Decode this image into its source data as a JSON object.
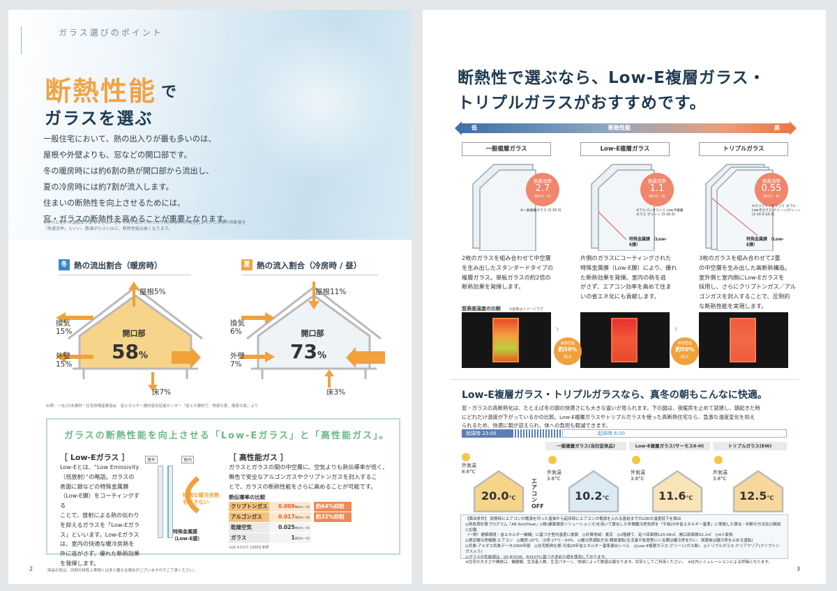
{
  "left": {
    "header": "ガラス選びのポイント",
    "title_main": "断熱性能",
    "title_de": "で",
    "title_sub": "ガラスを選ぶ",
    "intro_lines": [
      "一般住宅において、熱の出入りが最も多いのは、",
      "屋根や外壁よりも、窓などの開口部です。",
      "冬の暖房時には約6割の熱が開口部から流出し、",
      "夏の冷房時には約7割が流入します。",
      "住まいの断熱性を向上させるためには、",
      "窓・ガラスの断熱性を高めることが重要となります。"
    ],
    "intro_note": "※室内と屋外の温度差があるときに、室から熱が出たり入ったり(熱の流れ)が発生します。この熱の移動量を「熱還流率」といい、数値が小さいほど、断熱性能は高くなります。",
    "winter": {
      "badge": "冬",
      "title": "熱の流出割合（暖房時）",
      "roof": "屋根5%",
      "vent_label": "換気",
      "vent_val": "15%",
      "wall_label": "外壁",
      "wall_val": "15%",
      "floor": "床7%",
      "open_label": "開口部",
      "open_num": "58",
      "open_unit": "%"
    },
    "summer": {
      "badge": "夏",
      "title": "熱の流入割合（冷房時 / 昼）",
      "roof": "屋根11%",
      "vent_label": "換気",
      "vent_val": "6%",
      "wall_label": "外壁",
      "wall_val": "7%",
      "floor": "床3%",
      "open_label": "開口部",
      "open_num": "73",
      "open_unit": "%"
    },
    "source": "出典：一社)日本建材・住宅設備産業協会　省エネルギー建材普及促進センター「省エネ建材で、快適な家、健康な家」より",
    "lowe_title": "ガラスの断熱性能を向上させる「Low-Eガラス」と「高性能ガス」。",
    "lowe": {
      "heading": "［ Low-Eガラス ］",
      "lines": [
        "Low-Eとは、“Low Emissivity",
        "（低放射）”の略語。ガラスの",
        "表面に銀などの特殊金属膜",
        "（Low-E膜）をコーティングする",
        "ことで、放射による熱の伝わり",
        "を抑えるガラスを「Low-Eガラ",
        "ス」といいます。Low-Eガラス",
        "は、室内の快適な暖冷房熱を",
        "外に逃がさず、優れた断熱効果",
        "を発揮します。"
      ],
      "outdoor": "室外",
      "indoor": "室内",
      "arrow_text": "快適な暖冷房熱を逃さない",
      "film_label": "特殊金属膜",
      "film_sub": "（Low-E膜）"
    },
    "gas": {
      "heading": "［ 高性能ガス ］",
      "lines": [
        "ガラスとガラスの間の中空層に、空気よりも熱伝導率が低く、",
        "無色で安全なアルゴンガスやクリプトンガスを封入するこ",
        "とで、ガラスの断熱性能をさらに高めることが可能です。"
      ],
      "table_title": "熱伝導率の比較",
      "rows": [
        {
          "name": "クリプトンガス",
          "value": "0.009",
          "unit": "W/(m・K)",
          "note": "約64%抑制"
        },
        {
          "name": "アルゴンガス",
          "value": "0.017",
          "unit": "W/(m・K)",
          "note": "約32%抑制"
        },
        {
          "name": "乾燥空気",
          "value": "0.025",
          "unit": "W/(m・K)",
          "note": ""
        },
        {
          "name": "ガラス",
          "value": "1",
          "unit": "W/(m・K)",
          "note": ""
        }
      ],
      "table_note": "※JIS R3107:1998を参照"
    },
    "page_num": "2",
    "footer": "商品の色は、印刷の特性上実物とは多少異なる場合がございますのでご了承ください。"
  },
  "right": {
    "title_l1": "断熱性で選ぶなら、Low-E複層ガラス・",
    "title_l2": "トリプルガラスがおすすめです。",
    "scale_low": "低",
    "scale_mid": "断熱性能",
    "scale_high": "高",
    "glasses": [
      {
        "name": "一般複層ガラス",
        "heat_label": "熱貫流率",
        "heat_val": "2.7",
        "heat_unit": "W/(㎡・K)",
        "spec": "※一般複層ガラス (3-16-3)",
        "film": "",
        "desc": [
          "2枚のガラスを組み合わせて中空層",
          "を生み出したスタンダードタイプの",
          "複層ガラス。単板ガラスの約2倍の",
          "断熱効果を発揮します。"
        ]
      },
      {
        "name": "Low-E複層ガラス",
        "heat_label": "熱貫流率",
        "heat_val": "1.1",
        "heat_unit": "W/(㎡・K)",
        "spec": "※アルゴンガス入り Low-E複層ガラス グリーン (3-16-3)",
        "film": "特殊金属膜 （Low-E膜）",
        "desc": [
          "片側のガラスにコーティングされた",
          "特殊金属膜（Low-E膜）により、優れ",
          "た断熱効果を発揮。室内の熱を逃",
          "がさず、エアコン効率を高めて住ま",
          "いの省エネ化にも貢献します。"
        ]
      },
      {
        "name": "トリプルガラス",
        "heat_label": "熱貫流率",
        "heat_val": "0.55",
        "heat_unit": "W/(㎡・K)",
        "spec": "※クリプトンガス入り ダブルLow-Eガラス グリーン/グリーン (3-10-3-10-3)",
        "film": "特殊金属膜 （Low-E膜）",
        "desc": [
          "3枚のガラスを組み合わせて2重",
          "の中空層を生み出した高断熱構造。",
          "室外側と室内側にLow-Eガラスを",
          "採用し、さらにクリプトンガス／アル",
          "ゴンガスを封入することで、圧倒的",
          "な断熱性能を実現します。"
        ]
      }
    ],
    "thermal_title": "窓表面温度の比較",
    "thermal_note": "※画像はイメージです",
    "improve1_top": "断熱性能",
    "improve1_val": "約59%",
    "improve1_bot": "向上",
    "improve2_top": "断熱性能",
    "improve2_val": "約50%",
    "improve2_bot": "向上",
    "comfort_title": "Low-E複層ガラス・トリプルガラスなら、真冬の朝もこんなに快適。",
    "comfort_lines": [
      "窓・ガラスの高断熱化は、たとえば冬の朝の快適さにも大きな違いが見られます。下の図は、夜暖房を止めて就寝し、朝起きた時",
      "にどれだけ温度が下がっているかの比較。Low-E複層ガラスやトリプルガラスを使った高断熱住宅なら、急激な温度変化を抑え",
      "られるため、快適に朝が迎えられ、体への負担も軽減できます。"
    ],
    "sleep_label": "就寝時 23:00",
    "wake_label": "起床時 6:00",
    "outside_label": "外気温",
    "outside_left": "8.6°C",
    "aircon_off": "エアコンOFF",
    "houses": [
      {
        "name": "",
        "outside": "",
        "temp": "20.0",
        "unit": "℃"
      },
      {
        "name": "一般複層ガラス(当社従来品)",
        "outside": "3.8°C",
        "temp": "10.2",
        "unit": "℃"
      },
      {
        "name": "Low-E複層ガラス(サーモスⅡ-H)",
        "outside": "3.8°C",
        "temp": "11.6",
        "unit": "℃"
      },
      {
        "name": "トリプルガラス(EW)",
        "outside": "3.8°C",
        "temp": "12.5",
        "unit": "℃"
      }
    ],
    "cond_lines": [
      "【算出条件】 就寝時にエアコンの電源を切った直後から起床時にエアコンの電源を入れる直前までのLDKの温度低下を算出",
      "◎熱負荷計算プログラム「AE-Sim/Heat」((株)建築環境ソリューションズ)を用いて算出した年間暖冷房負荷を「平成25年省エネルギー基準」に準拠した算出・判断の方法及び解説に記載",
      "（一財）建築環境・省エネルギー機構」に基づき室内温度に換算　◎計算地域：東京　◎2階建て、延べ床面積120.08㎡、開口部面積32.2㎡　◎4人家族",
      "◎想定暖冷房機器:エアコン　◎暖房:20℃、冷房:27℃・60%　◎暖冷房運転方法:間歇運転(生活者が各居室にいる間は暖冷房を行い、就寝後は暖冷房を止める運転)",
      "◎気象:アメダス気象データ2000年版　◎住宅断熱仕様:平成28年省エネルギー基準適合レベル　◎Low-E複層ガラス:グリーン(ガス無)　◎トリプルガラス:クリアクリア(クリプトンガス入り)",
      "◎ガラスの性能値は、JIS R3106、R3107に基づき求めた値を使用しております。",
      "※住宅の大きさや開放口、機器類、生活者人数、生活パターン、地域によって数値は異なります。目安としてご利用ください。　※社内シミュレーションによる評価となります。"
    ],
    "page_num": "3"
  }
}
